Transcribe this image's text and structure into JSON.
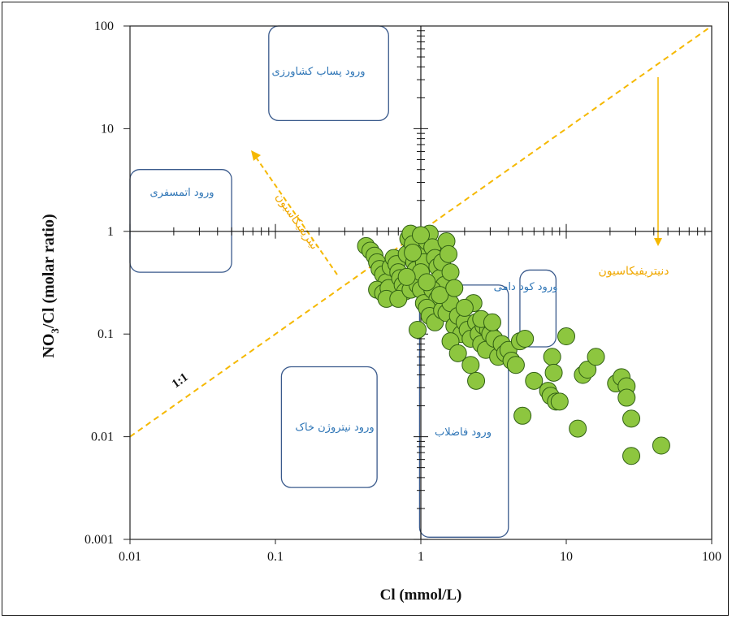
{
  "chart_data": {
    "type": "scatter",
    "xlabel": "Cl (mmol/L)",
    "ylabel_main": "NO",
    "ylabel_sub": "3",
    "ylabel_rest": "/Cl (molar ratio)",
    "x_scale": "log",
    "y_scale": "log",
    "xlim": [
      0.01,
      100
    ],
    "ylim": [
      0.001,
      100
    ],
    "x_ticks": [
      {
        "value": 0.01,
        "label": "0.01"
      },
      {
        "value": 0.1,
        "label": "0.1"
      },
      {
        "value": 1,
        "label": "1"
      },
      {
        "value": 10,
        "label": "10"
      },
      {
        "value": 100,
        "label": "100"
      }
    ],
    "y_ticks": [
      {
        "value": 0.001,
        "label": "0.001"
      },
      {
        "value": 0.01,
        "label": "0.01"
      },
      {
        "value": 0.1,
        "label": "0.1"
      },
      {
        "value": 1,
        "label": "1"
      },
      {
        "value": 10,
        "label": "10"
      },
      {
        "value": 100,
        "label": "100"
      }
    ],
    "grid": false,
    "reference_line": {
      "label": "1:1",
      "x": [
        0.01,
        100
      ],
      "y": [
        0.01,
        100
      ],
      "color": "#f5b800"
    },
    "marker_color": "#8dc63f",
    "marker_edge": "#2f5e14",
    "regions": [
      {
        "label": "ورود پساب کشاورزی",
        "x": [
          0.09,
          0.6
        ],
        "y": [
          12,
          100
        ]
      },
      {
        "label": "ورود اتمسفری",
        "x": [
          0.01,
          0.05
        ],
        "y": [
          0.4,
          4
        ]
      },
      {
        "label": "ورود نیتروژن خاک",
        "x": [
          0.11,
          0.5
        ],
        "y": [
          0.0032,
          0.048
        ]
      },
      {
        "label": "ورود فاضلاب",
        "x": [
          0.98,
          4.0
        ],
        "y": [
          0.00105,
          0.3
        ]
      },
      {
        "label": "ورود کود دامی",
        "x": [
          4.8,
          8.5
        ],
        "y": [
          0.075,
          0.42
        ]
      }
    ],
    "annotations": [
      {
        "label": "دنیتریفیکاسیون",
        "color": "#f5b800"
      },
      {
        "label": "نیتریفیکاسیون",
        "color": "#f5b800"
      }
    ],
    "points": [
      [
        0.42,
        0.72
      ],
      [
        0.45,
        0.65
      ],
      [
        0.48,
        0.58
      ],
      [
        0.5,
        0.5
      ],
      [
        0.52,
        0.43
      ],
      [
        0.55,
        0.38
      ],
      [
        0.58,
        0.32
      ],
      [
        0.5,
        0.27
      ],
      [
        0.55,
        0.25
      ],
      [
        0.6,
        0.28
      ],
      [
        0.62,
        0.45
      ],
      [
        0.65,
        0.55
      ],
      [
        0.68,
        0.48
      ],
      [
        0.7,
        0.4
      ],
      [
        0.72,
        0.35
      ],
      [
        0.75,
        0.3
      ],
      [
        0.78,
        0.26
      ],
      [
        0.8,
        0.6
      ],
      [
        0.82,
        0.85
      ],
      [
        0.85,
        0.95
      ],
      [
        0.88,
        0.75
      ],
      [
        0.9,
        0.5
      ],
      [
        0.92,
        0.42
      ],
      [
        0.95,
        0.35
      ],
      [
        0.58,
        0.22
      ],
      [
        0.7,
        0.22
      ],
      [
        0.85,
        0.27
      ],
      [
        0.95,
        0.3
      ],
      [
        1.0,
        0.6
      ],
      [
        1.05,
        0.5
      ],
      [
        1.0,
        0.4
      ],
      [
        1.0,
        0.27
      ],
      [
        1.05,
        0.2
      ],
      [
        1.1,
        0.8
      ],
      [
        1.15,
        0.95
      ],
      [
        1.2,
        0.7
      ],
      [
        1.25,
        0.55
      ],
      [
        1.3,
        0.45
      ],
      [
        1.35,
        0.35
      ],
      [
        1.4,
        0.5
      ],
      [
        1.45,
        0.3
      ],
      [
        1.5,
        0.8
      ],
      [
        1.55,
        0.6
      ],
      [
        1.6,
        0.4
      ],
      [
        1.2,
        0.27
      ],
      [
        1.3,
        0.22
      ],
      [
        1.1,
        0.18
      ],
      [
        1.15,
        0.15
      ],
      [
        1.25,
        0.13
      ],
      [
        0.95,
        0.11
      ],
      [
        1.4,
        0.17
      ],
      [
        1.5,
        0.16
      ],
      [
        1.6,
        0.2
      ],
      [
        1.7,
        0.12
      ],
      [
        1.8,
        0.15
      ],
      [
        1.9,
        0.1
      ],
      [
        2.0,
        0.13
      ],
      [
        2.1,
        0.11
      ],
      [
        2.2,
        0.09
      ],
      [
        2.3,
        0.2
      ],
      [
        2.4,
        0.13
      ],
      [
        2.5,
        0.1
      ],
      [
        2.6,
        0.08
      ],
      [
        2.7,
        0.12
      ],
      [
        2.8,
        0.07
      ],
      [
        2.9,
        0.11
      ],
      [
        3.0,
        0.1
      ],
      [
        3.2,
        0.09
      ],
      [
        3.4,
        0.06
      ],
      [
        3.6,
        0.08
      ],
      [
        3.8,
        0.065
      ],
      [
        4.0,
        0.07
      ],
      [
        4.2,
        0.055
      ],
      [
        4.5,
        0.05
      ],
      [
        1.6,
        0.085
      ],
      [
        1.8,
        0.065
      ],
      [
        2.2,
        0.05
      ],
      [
        2.4,
        0.035
      ],
      [
        4.8,
        0.085
      ],
      [
        5.2,
        0.09
      ],
      [
        6.0,
        0.035
      ],
      [
        7.5,
        0.028
      ],
      [
        8.0,
        0.06
      ],
      [
        8.2,
        0.042
      ],
      [
        7.8,
        0.025
      ],
      [
        8.5,
        0.022
      ],
      [
        9.0,
        0.022
      ],
      [
        10.0,
        0.095
      ],
      [
        12.0,
        0.012
      ],
      [
        13.0,
        0.04
      ],
      [
        14.0,
        0.045
      ],
      [
        16.0,
        0.06
      ],
      [
        22.0,
        0.033
      ],
      [
        24.0,
        0.038
      ],
      [
        26.0,
        0.031
      ],
      [
        26.0,
        0.024
      ],
      [
        28.0,
        0.015
      ],
      [
        28.0,
        0.0065
      ],
      [
        45.0,
        0.0082
      ],
      [
        5.0,
        0.016
      ],
      [
        1.0,
        0.92
      ],
      [
        0.88,
        0.62
      ],
      [
        0.8,
        0.36
      ],
      [
        1.1,
        0.32
      ],
      [
        1.35,
        0.24
      ],
      [
        1.7,
        0.28
      ],
      [
        2.0,
        0.18
      ],
      [
        2.6,
        0.14
      ],
      [
        3.1,
        0.13
      ]
    ]
  }
}
